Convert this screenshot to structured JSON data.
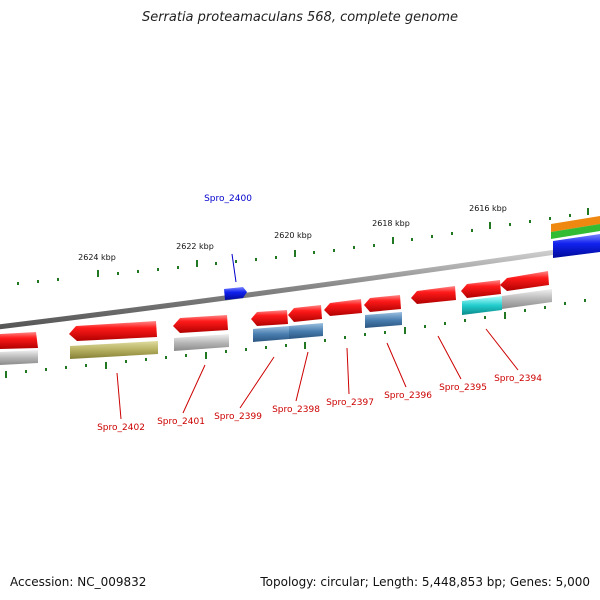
{
  "title": "Serratia proteamaculans 568, complete genome",
  "accession": "Accession: NC_009832",
  "summary": "Topology: circular; Length: 5,448,853 bp; Genes: 5,000",
  "scale_labels": [
    "2624 kbp",
    "2622 kbp",
    "2620 kbp",
    "2618 kbp",
    "2616 kbp"
  ],
  "genes": [
    {
      "id": "Spro_2400",
      "color": "#0000cc"
    },
    {
      "id": "Spro_2402",
      "color": "#cc0000"
    },
    {
      "id": "Spro_2401",
      "color": "#cc0000"
    },
    {
      "id": "Spro_2399",
      "color": "#cc0000"
    },
    {
      "id": "Spro_2398",
      "color": "#cc0000"
    },
    {
      "id": "Spro_2397",
      "color": "#cc0000"
    },
    {
      "id": "Spro_2396",
      "color": "#cc0000"
    },
    {
      "id": "Spro_2395",
      "color": "#cc0000"
    },
    {
      "id": "Spro_2394",
      "color": "#cc0000"
    }
  ],
  "colors": {
    "backbone": "#888888",
    "gene_red": "#ee1111",
    "gene_blue": "#1122ee",
    "tick_green": "#227722",
    "cog_gray": "#aaaaaa",
    "cog_olive": "#b5b060",
    "cog_steel": "#4a7fb0",
    "cog_cyan": "#22cccc",
    "cog_orange": "#ee8811",
    "cog_green": "#33bb33"
  }
}
